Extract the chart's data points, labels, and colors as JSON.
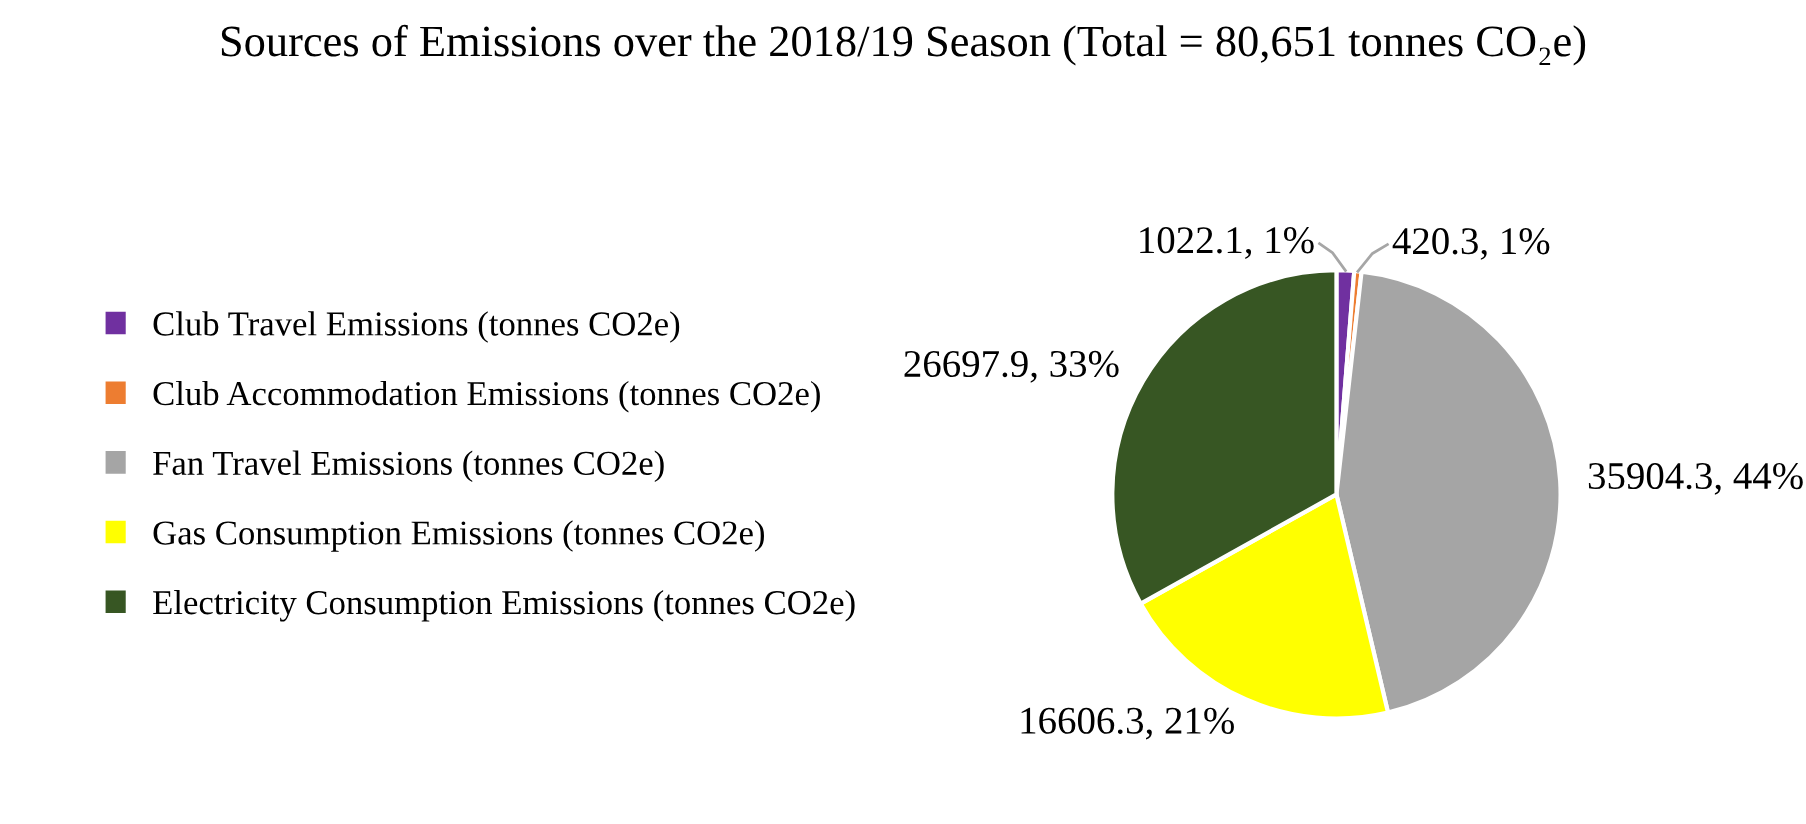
{
  "chart_data": {
    "type": "pie",
    "title": "Sources of Emissions over the 2018/19 Season (Total = 80,651 tonnes CO₂e)",
    "categories": [
      "Club Travel Emissions (tonnes CO2e)",
      "Club Accommodation Emissions (tonnes CO2e)",
      "Fan Travel Emissions (tonnes CO2e)",
      "Gas Consumption Emissions (tonnes CO2e)",
      "Electricity Consumption Emissions (tonnes CO2e)"
    ],
    "values": [
      1022.1,
      420.3,
      35904.3,
      16606.3,
      26697.9
    ],
    "colors": [
      "#7030a0",
      "#ed7d31",
      "#a5a5a5",
      "#ffff00",
      "#375623"
    ],
    "value_labels": [
      "1022.1, 1%",
      "420.3, 1%",
      "35904.3, 44%",
      "16606.3, 21%",
      "26697.9, 33%"
    ],
    "legend": "left"
  }
}
